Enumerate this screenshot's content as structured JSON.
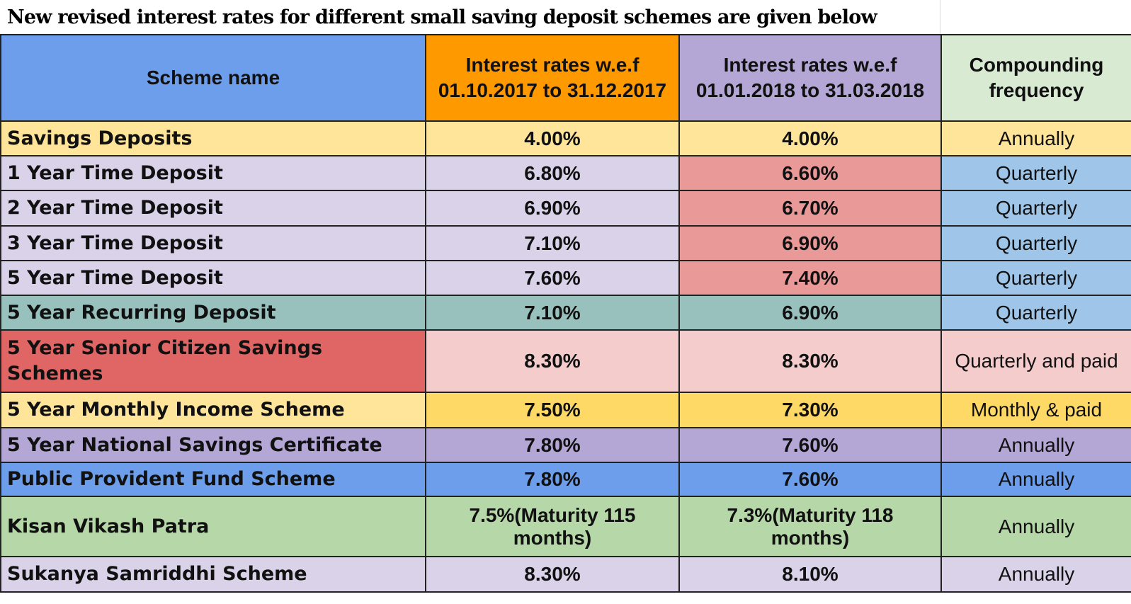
{
  "title": "New revised interest rates for different small saving deposit schemes are given below",
  "headers": [
    "Scheme name",
    "Interest rates w.e.f 01.10.2017 to 31.12.2017",
    "Interest rates w.e.f 01.01.2018 to 31.03.2018",
    "Compounding frequency"
  ],
  "header_colors": [
    "#6d9eeb",
    "#ff9900",
    "#b4a7d6",
    "#d9ead3"
  ],
  "rows": [
    {
      "name": "Savings Deposits",
      "old": "4.00%",
      "new": "4.00%",
      "freq": "Annually",
      "colors": [
        "#ffe599",
        "#ffe599",
        "#ffe599",
        "#ffe599"
      ]
    },
    {
      "name": "1 Year Time Deposit",
      "old": "6.80%",
      "new": "6.60%",
      "freq": "Quarterly",
      "colors": [
        "#d9d2e9",
        "#d9d2e9",
        "#ea9999",
        "#9fc5e8"
      ]
    },
    {
      "name": "2 Year Time Deposit",
      "old": "6.90%",
      "new": "6.70%",
      "freq": "Quarterly",
      "colors": [
        "#d9d2e9",
        "#d9d2e9",
        "#ea9999",
        "#9fc5e8"
      ]
    },
    {
      "name": "3 Year Time Deposit",
      "old": "7.10%",
      "new": "6.90%",
      "freq": "Quarterly",
      "colors": [
        "#d9d2e9",
        "#d9d2e9",
        "#ea9999",
        "#9fc5e8"
      ]
    },
    {
      "name": "5 Year Time Deposit",
      "old": "7.60%",
      "new": "7.40%",
      "freq": "Quarterly",
      "colors": [
        "#d9d2e9",
        "#d9d2e9",
        "#ea9999",
        "#9fc5e8"
      ]
    },
    {
      "name": "5 Year Recurring Deposit",
      "old": "7.10%",
      "new": "6.90%",
      "freq": "Quarterly",
      "colors": [
        "#98c0bc",
        "#98c0bc",
        "#98c0bc",
        "#9fc5e8"
      ]
    },
    {
      "name": "5 Year Senior Citizen Savings Schemes",
      "old": "8.30%",
      "new": "8.30%",
      "freq": "Quarterly and paid",
      "colors": [
        "#e06666",
        "#f4cccc",
        "#f4cccc",
        "#f4cccc"
      ]
    },
    {
      "name": "5 Year Monthly Income Scheme",
      "old": "7.50%",
      "new": "7.30%",
      "freq": "Monthly & paid",
      "colors": [
        "#ffe599",
        "#ffd966",
        "#ffd966",
        "#ffd966"
      ]
    },
    {
      "name": "5 Year National Savings Certificate",
      "old": "7.80%",
      "new": "7.60%",
      "freq": "Annually",
      "colors": [
        "#b4a7d6",
        "#b4a7d6",
        "#b4a7d6",
        "#b4a7d6"
      ]
    },
    {
      "name": "Public Provident Fund Scheme",
      "old": "7.80%",
      "new": "7.60%",
      "freq": "Annually",
      "colors": [
        "#6d9eeb",
        "#6d9eeb",
        "#6d9eeb",
        "#6d9eeb"
      ]
    },
    {
      "name": "Kisan Vikash Patra",
      "old": "7.5%(Maturity 115 months)",
      "new": "7.3%(Maturity 118 months)",
      "freq": "Annually",
      "colors": [
        "#b6d7a8",
        "#b6d7a8",
        "#b6d7a8",
        "#b6d7a8"
      ]
    },
    {
      "name": "Sukanya Samriddhi Scheme",
      "old": "8.30%",
      "new": "8.10%",
      "freq": "Annually",
      "colors": [
        "#d9d2e9",
        "#d9d2e9",
        "#d9d2e9",
        "#d9d2e9"
      ]
    }
  ]
}
